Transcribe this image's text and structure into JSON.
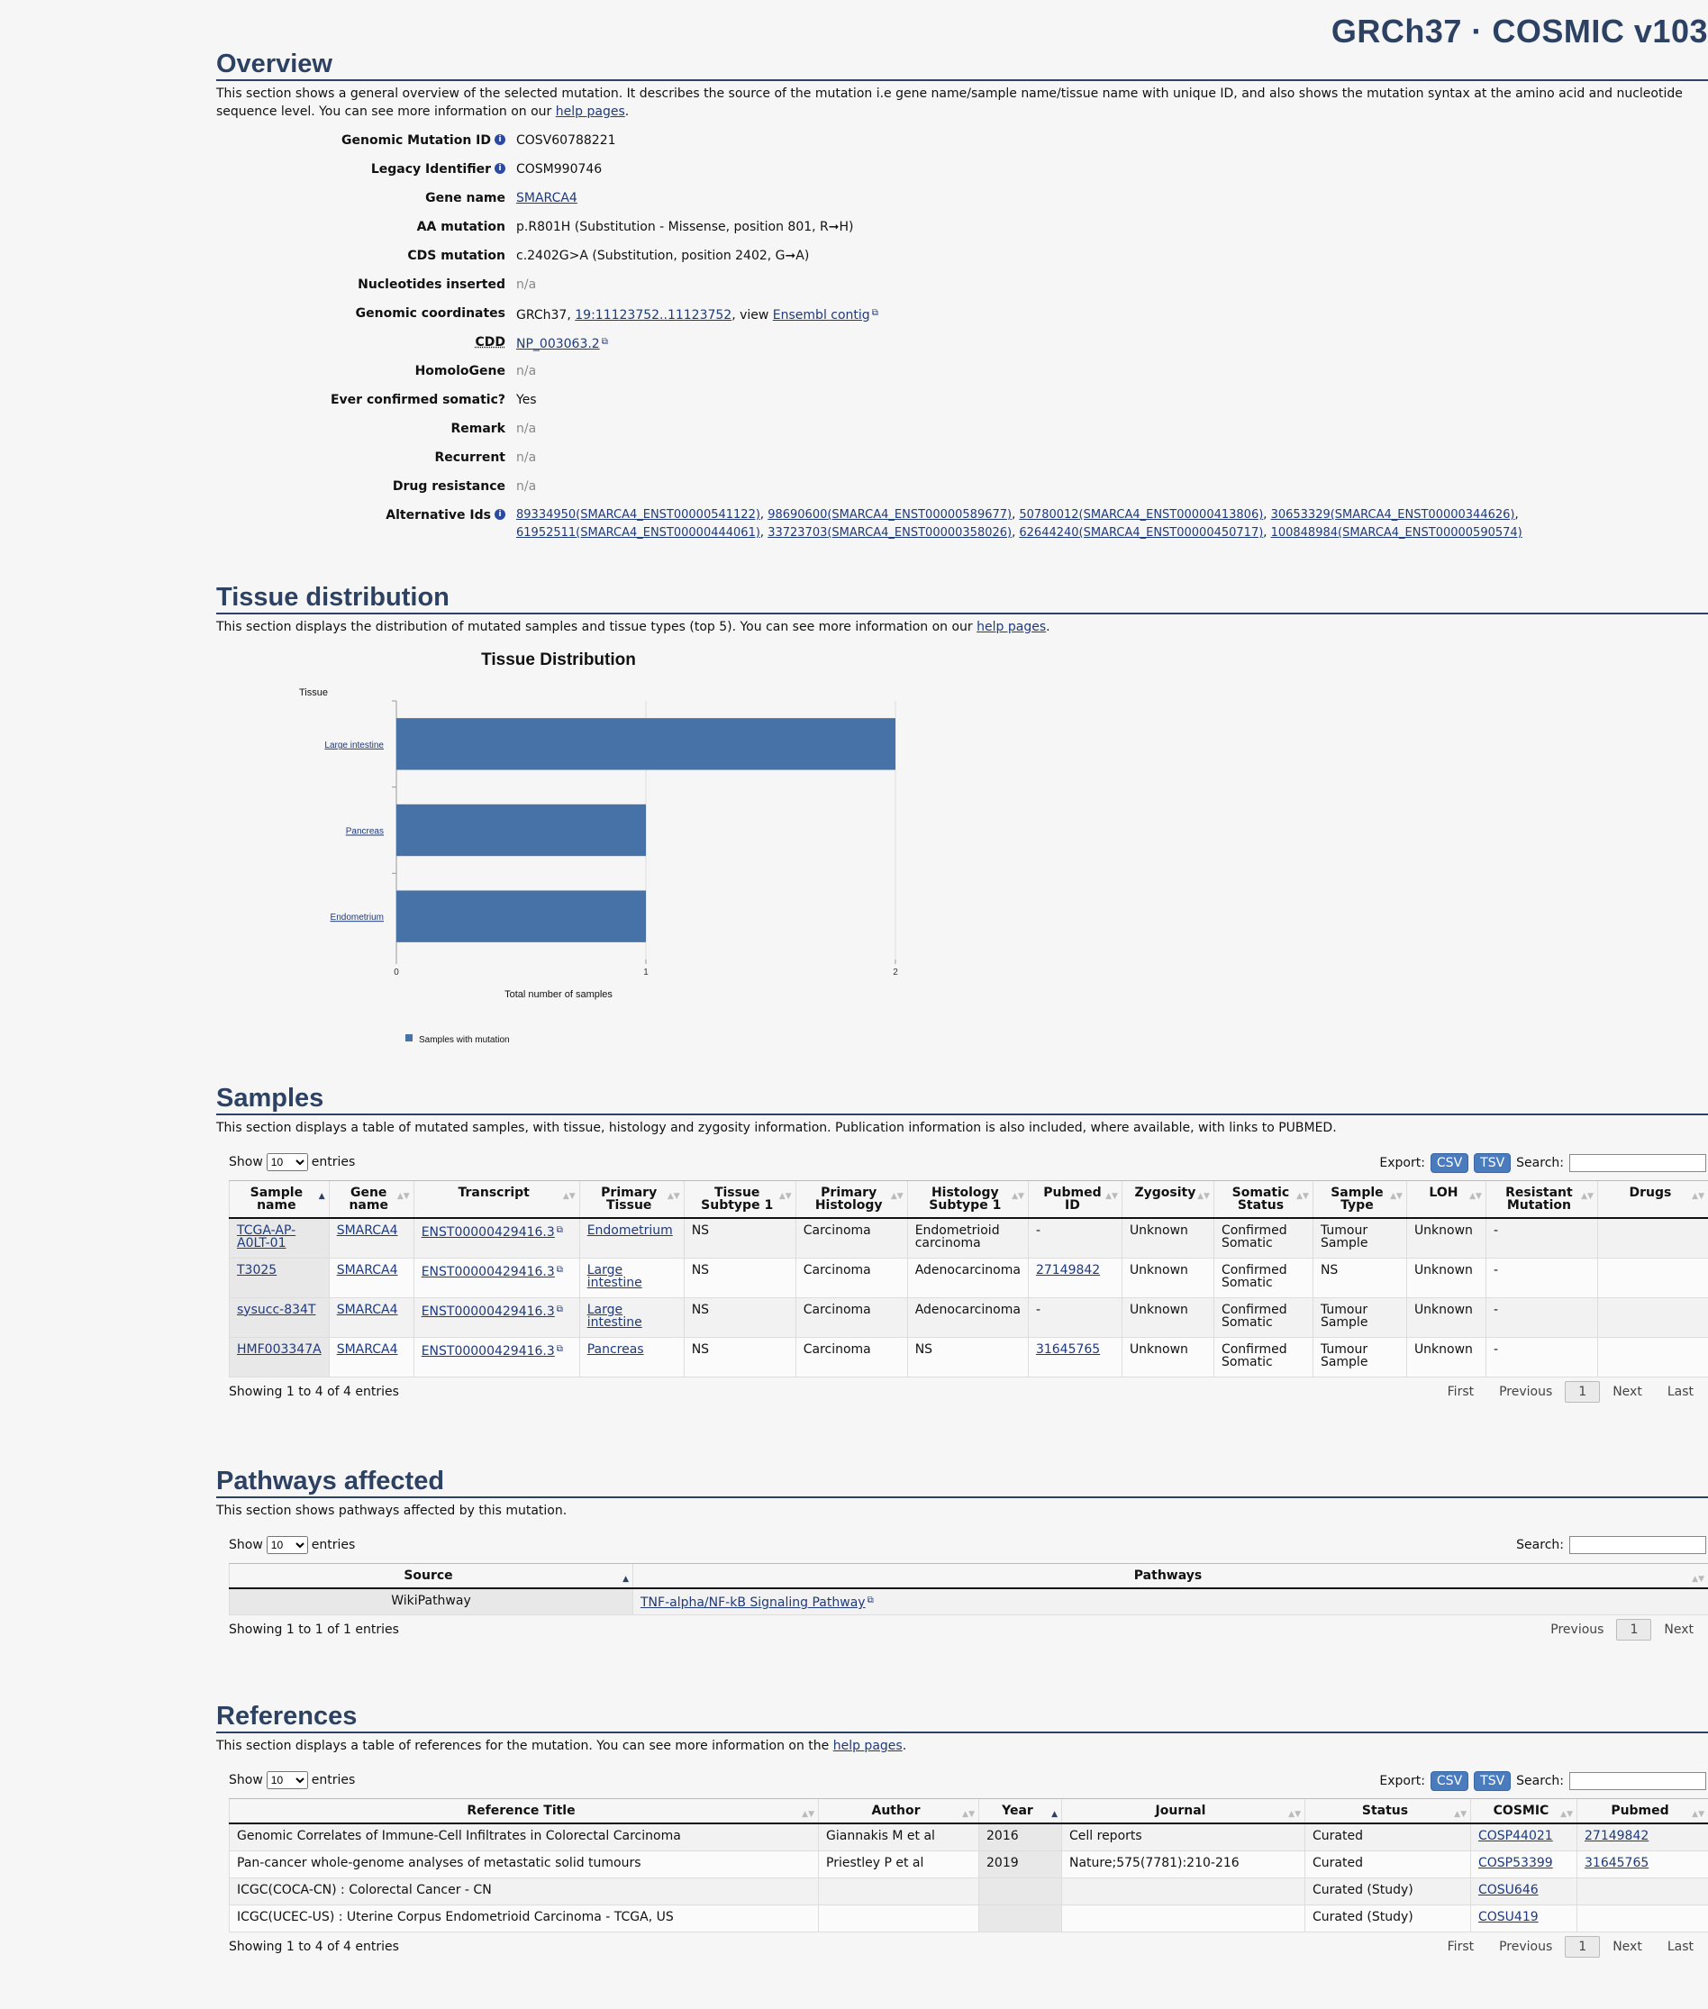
{
  "header": {
    "title": "GRCh37 · COSMIC v103"
  },
  "overview": {
    "title": "Overview",
    "desc_text": "This section shows a general overview of the selected mutation. It describes the source of the mutation i.e gene name/sample name/tissue name with unique ID, and also shows the mutation syntax at the amino acid and nucleotide sequence level. You can see more information on our ",
    "desc_link": "help pages",
    "rows": {
      "genomic_id_label": "Genomic Mutation ID",
      "genomic_id": "COSV60788221",
      "legacy_label": "Legacy Identifier",
      "legacy": "COSM990746",
      "gene_label": "Gene name",
      "gene": "SMARCA4",
      "aa_label": "AA mutation",
      "aa": "p.R801H (Substitution - Missense, position 801, R➞H)",
      "cds_label": "CDS mutation",
      "cds": "c.2402G>A (Substitution, position 2402, G➞A)",
      "nuc_label": "Nucleotides inserted",
      "nuc": "n/a",
      "coords_label": "Genomic coordinates",
      "coords_prefix": "GRCh37, ",
      "coords_link": "19:11123752..11123752",
      "coords_mid": ", view ",
      "coords_ensembl": "Ensembl contig",
      "cdd_label": "CDD",
      "cdd": "NP_003063.2",
      "homolo_label": "HomoloGene",
      "homolo": "n/a",
      "somatic_label": "Ever confirmed somatic?",
      "somatic": "Yes",
      "remark_label": "Remark",
      "remark": "n/a",
      "recurrent_label": "Recurrent",
      "recurrent": "n/a",
      "drug_label": "Drug resistance",
      "drug": "n/a",
      "alt_label": "Alternative Ids"
    },
    "alt_ids": [
      "89334950(SMARCA4_ENST00000541122)",
      "98690600(SMARCA4_ENST00000589677)",
      "50780012(SMARCA4_ENST00000413806)",
      "30653329(SMARCA4_ENST00000344626)",
      "61952511(SMARCA4_ENST00000444061)",
      "33723703(SMARCA4_ENST00000358026)",
      "62644240(SMARCA4_ENST00000450717)",
      "100848984(SMARCA4_ENST00000590574)"
    ]
  },
  "tissue": {
    "title": "Tissue distribution",
    "desc_text": "This section displays the distribution of mutated samples and tissue types (top 5). You can see more information on our ",
    "desc_link": "help pages"
  },
  "chart_data": {
    "type": "bar",
    "orientation": "horizontal",
    "title": "Tissue Distribution",
    "ylabel": "Tissue",
    "xlabel": "Total number of samples",
    "categories": [
      "Large intestine",
      "Pancreas",
      "Endometrium"
    ],
    "series": [
      {
        "name": "Samples with mutation",
        "values": [
          2,
          1,
          1
        ]
      }
    ],
    "xlim": [
      0,
      2
    ],
    "xticks": [
      "0",
      "1",
      "2"
    ],
    "bar_color": "#4672a8",
    "legend": "bottom-left"
  },
  "samples": {
    "title": "Samples",
    "desc": "This section displays a table of mutated samples, with tissue, histology and zygosity information. Publication information is also included, where available, with links to PUBMED.",
    "show": "Show",
    "entries": "entries",
    "page_size": "10",
    "export": "Export:",
    "csv": "CSV",
    "tsv": "TSV",
    "search": "Search:",
    "columns": [
      "Sample name",
      "Gene name",
      "Transcript",
      "Primary Tissue",
      "Tissue Subtype 1",
      "Primary Histology",
      "Histology Subtype 1",
      "Pubmed ID",
      "Zygosity",
      "Somatic Status",
      "Sample Type",
      "LOH",
      "Resistant Mutation",
      "Drugs"
    ],
    "rows": [
      [
        "TCGA-AP-A0LT-01",
        "SMARCA4",
        "ENST00000429416.3",
        "Endometrium",
        "NS",
        "Carcinoma",
        "Endometrioid carcinoma",
        "-",
        "Unknown",
        "Confirmed Somatic",
        "Tumour Sample",
        "Unknown",
        "-",
        ""
      ],
      [
        "T3025",
        "SMARCA4",
        "ENST00000429416.3",
        "Large intestine",
        "NS",
        "Carcinoma",
        "Adenocarcinoma",
        "27149842",
        "Unknown",
        "Confirmed Somatic",
        "NS",
        "Unknown",
        "-",
        ""
      ],
      [
        "sysucc-834T",
        "SMARCA4",
        "ENST00000429416.3",
        "Large intestine",
        "NS",
        "Carcinoma",
        "Adenocarcinoma",
        "-",
        "Unknown",
        "Confirmed Somatic",
        "Tumour Sample",
        "Unknown",
        "-",
        ""
      ],
      [
        "HMF003347A",
        "SMARCA4",
        "ENST00000429416.3",
        "Pancreas",
        "NS",
        "Carcinoma",
        "NS",
        "31645765",
        "Unknown",
        "Confirmed Somatic",
        "Tumour Sample",
        "Unknown",
        "-",
        ""
      ]
    ],
    "info": "Showing 1 to 4 of 4 entries",
    "pager": {
      "first": "First",
      "prev": "Previous",
      "page": "1",
      "next": "Next",
      "last": "Last"
    }
  },
  "pathways": {
    "title": "Pathways affected",
    "desc": "This section shows pathways affected by this mutation.",
    "show": "Show",
    "entries": "entries",
    "page_size": "10",
    "search": "Search:",
    "columns": [
      "Source",
      "Pathways"
    ],
    "rows": [
      [
        "WikiPathway",
        "TNF-alpha/NF-kB Signaling Pathway"
      ]
    ],
    "info": "Showing 1 to 1 of 1 entries",
    "pager": {
      "prev": "Previous",
      "page": "1",
      "next": "Next"
    }
  },
  "references": {
    "title": "References",
    "desc_text": "This section displays a table of references for the mutation. You can see more information on the ",
    "desc_link": "help pages",
    "show": "Show",
    "entries": "entries",
    "page_size": "10",
    "export": "Export:",
    "csv": "CSV",
    "tsv": "TSV",
    "search": "Search:",
    "columns": [
      "Reference Title",
      "Author",
      "Year",
      "Journal",
      "Status",
      "COSMIC",
      "Pubmed"
    ],
    "rows": [
      [
        "Genomic Correlates of Immune-Cell Infiltrates in Colorectal Carcinoma",
        "Giannakis M et al",
        "2016",
        "Cell reports",
        "Curated",
        "COSP44021",
        "27149842"
      ],
      [
        "Pan-cancer whole-genome analyses of metastatic solid tumours",
        "Priestley P et al",
        "2019",
        "Nature;575(7781):210-216",
        "Curated",
        "COSP53399",
        "31645765"
      ],
      [
        "ICGC(COCA-CN) : Colorectal Cancer - CN",
        "",
        "",
        "",
        "Curated (Study)",
        "COSU646",
        ""
      ],
      [
        "ICGC(UCEC-US) : Uterine Corpus Endometrioid Carcinoma - TCGA, US",
        "",
        "",
        "",
        "Curated (Study)",
        "COSU419",
        ""
      ]
    ],
    "info": "Showing 1 to 4 of 4 entries",
    "pager": {
      "first": "First",
      "prev": "Previous",
      "page": "1",
      "next": "Next",
      "last": "Last"
    }
  },
  "colors": {
    "heading": "#2d4163",
    "link": "#1f3a7a",
    "export_button": "#4a7bbd"
  }
}
